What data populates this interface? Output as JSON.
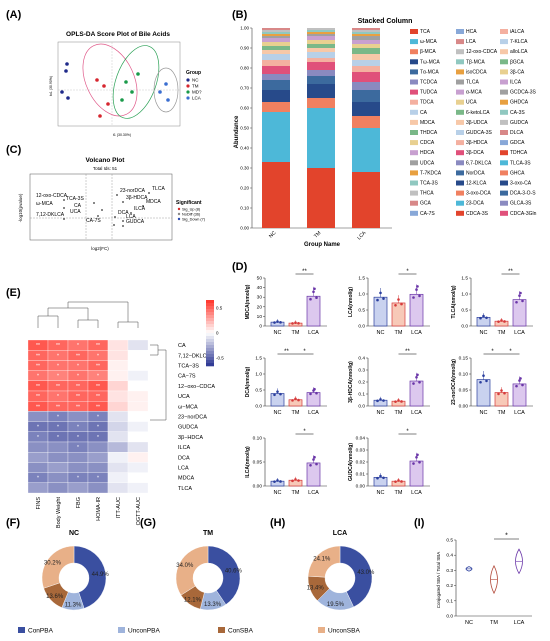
{
  "panels": {
    "A": {
      "letter": "(A)",
      "title": "OPLS-DA Score Plot of Bile Acids",
      "xlabel": "t1 (30.30%)",
      "ylabel": "to1 (30.90%)",
      "legend_title": "Group",
      "groups": [
        {
          "name": "NC",
          "color": "#1f2a8a"
        },
        {
          "name": "TM",
          "color": "#d6262f"
        },
        {
          "name": "MD?",
          "color": "#1a9a4a"
        },
        {
          "name": "LCA",
          "color": "#3a6ed0"
        }
      ]
    },
    "B": {
      "letter": "(B)",
      "title": "Stacked Column",
      "xlabel": "Group Name",
      "ylabel": "Abundance",
      "yticks": [
        "0.00",
        "0.10",
        "0.20",
        "0.30",
        "0.40",
        "0.50",
        "0.60",
        "0.70",
        "0.80",
        "0.90",
        "1.00"
      ],
      "categories": [
        "NC",
        "TM",
        "LCA"
      ],
      "legend_col1": [
        "TCA",
        "ω-MCA",
        "β-MCA",
        "Tω-MCA",
        "Tα-MCA",
        "TCDCA",
        "TUDCA",
        "TDCA",
        "CA",
        "MDCA",
        "THDCA",
        "CDCA",
        "HDCA",
        "UDCA",
        "T-7KDCA",
        "TCA-3S",
        "THCA",
        "GCA",
        "CA-7S"
      ],
      "legend_col2": [
        "HCA",
        "LCA",
        "12-oxo-CDCA",
        "Tβ-MCA",
        "isoCDCA",
        "TLCA",
        "α-MCA",
        "UCA",
        "6-ketoLCA",
        "3β-UDCA",
        "GUDCA-3S",
        "3β-HDCA",
        "3β-DCA",
        "6,7-DKLCA",
        "NorDCA",
        "12-KLCA",
        "3-oxo-DCA",
        "23-DCA",
        "CDCA-3S"
      ],
      "legend_col3": [
        "iALCA",
        "7-KLCA",
        "alloLCA",
        "βGCA",
        "3β-CA",
        "ILCA",
        "GCDCA-3S",
        "GHDCA",
        "CA-3S",
        "GUDCA",
        "DLCA",
        "GDCA",
        "TDHCA",
        "TLCA-3S",
        "GHCA",
        "3-oxo-CA",
        "DCA-3-O-S",
        "GLCA-3S",
        "CDCA-3Gln"
      ]
    },
    "C": {
      "letter": "(C)",
      "title": "Volcano Plot",
      "subtitle": "Total Ids: 51",
      "xlabel": "log2(FC)",
      "ylabel": "-log10(pvalue)",
      "legend_title": "Significant",
      "legend_items": [
        "Sig_Up (8)",
        "NoDiff (36)",
        "Sig_Down (7)"
      ],
      "point_labels": [
        "12-oxo-CDCA",
        "ω-MCA",
        "TCA-3S",
        "7,12-DKLCA",
        "UCA",
        "CA",
        "CA-7S",
        "23-norDCA",
        "3β-HDCA",
        "TLCA",
        "MDCA",
        "ILCA",
        "DCA",
        "LCA",
        "GUDCA"
      ]
    },
    "D": {
      "letter": "(D)",
      "xcats": [
        "NC",
        "TM",
        "LCA"
      ],
      "plots": [
        {
          "ylabel": "MDCA(nmol/g)",
          "yticks": [
            "0",
            "10",
            "20",
            "30",
            "40",
            "50"
          ],
          "sig": "**",
          "sig_between": "TM-LCA"
        },
        {
          "ylabel": "LCA(nmol/g)",
          "yticks": [
            "0.0",
            "0.5",
            "1.0",
            "1.5"
          ],
          "sig": "*",
          "sig_between": "TM-LCA"
        },
        {
          "ylabel": "TLCA(nmol/g)",
          "yticks": [
            "0.0",
            "0.5",
            "1.0",
            "1.5"
          ],
          "sig": "**",
          "sig_between": "TM-LCA"
        },
        {
          "ylabel": "DCA(nmol/g)",
          "yticks": [
            "0.0",
            "0.5",
            "1.0",
            "1.5"
          ],
          "sig": "** *",
          "sig_between": "NC-TM; TM-LCA"
        },
        {
          "ylabel": "3β-HDCA(nmol/g)",
          "yticks": [
            "0.0",
            "0.1",
            "0.2",
            "0.3",
            "0.4"
          ],
          "sig": "**",
          "sig_between": "TM-LCA"
        },
        {
          "ylabel": "23-norDCA(nmol/g)",
          "yticks": [
            "0.00",
            "0.05",
            "0.10",
            "0.15"
          ],
          "sig": "* *",
          "sig_between": "NC-TM; TM-LCA"
        },
        {
          "ylabel": "ILCA(nmol/g)",
          "yticks": [
            "0.00",
            "0.05",
            "0.10"
          ],
          "sig": "*",
          "sig_between": "TM-LCA"
        },
        {
          "ylabel": "GUDCA(nmol/g)",
          "yticks": [
            "0.00",
            "0.01",
            "0.02",
            "0.03",
            "0.04"
          ],
          "sig": "*",
          "sig_between": "TM-LCA"
        }
      ]
    },
    "E": {
      "letter": "(E)",
      "rows": [
        "CA",
        "7,12−DKLCA",
        "TCA−3S",
        "CA−7S",
        "12−oxo−CDCA",
        "UCA",
        "ω−MCA",
        "23−norDCA",
        "GUDCA",
        "3β−HDCA",
        "ILCA",
        "DCA",
        "LCA",
        "MDCA",
        "TLCA"
      ],
      "cols": [
        "FINS",
        "Body Weight",
        "FBG",
        "HOMA-IR",
        "ITT-AUC",
        "OGTT-AUC"
      ],
      "scale_ticks": [
        "0.5",
        "0",
        "-0.5"
      ]
    },
    "F": {
      "letter": "(F)",
      "title": "NC",
      "slices": [
        44.9,
        11.3,
        13.6,
        30.2
      ]
    },
    "G": {
      "letter": "(G)",
      "title": "TM",
      "slices": [
        40.6,
        13.3,
        12.1,
        34.0
      ]
    },
    "H": {
      "letter": "(H)",
      "title": "LCA",
      "slices": [
        43.0,
        19.5,
        13.4,
        24.1
      ]
    },
    "donut_legend": [
      {
        "name": "ConPBA",
        "color": "#3a4fa0"
      },
      {
        "name": "UnconPBA",
        "color": "#9fb4dc"
      },
      {
        "name": "ConSBA",
        "color": "#a8683a"
      },
      {
        "name": "UnconSBA",
        "color": "#e8b088"
      }
    ],
    "I": {
      "letter": "(I)",
      "ylabel": "Conjugated SBA / Total SBA",
      "yticks": [
        "0.0",
        "0.1",
        "0.2",
        "0.3",
        "0.4",
        "0.5"
      ],
      "xcats": [
        "NC",
        "TM",
        "LCA"
      ],
      "sig": "*"
    }
  }
}
